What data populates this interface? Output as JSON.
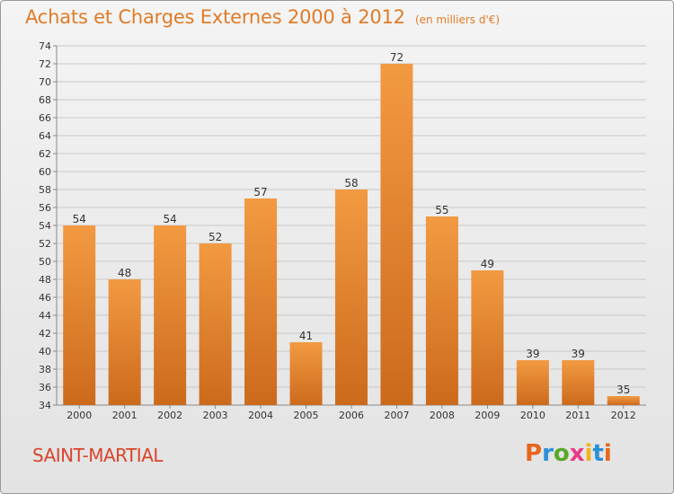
{
  "header": {
    "title": "Achats et Charges Externes 2000 à 2012",
    "unit": "(en milliers d'€)"
  },
  "footer": {
    "commune": "SAINT-MARTIAL",
    "logo_text": "Proxiti",
    "logo_colors": [
      "#e8651c",
      "#2a8fd6",
      "#5aa82a",
      "#e83a8a",
      "#f2b21b",
      "#2a8fd6",
      "#e8651c"
    ]
  },
  "chart_data": {
    "type": "bar",
    "categories": [
      "2000",
      "2001",
      "2002",
      "2003",
      "2004",
      "2005",
      "2006",
      "2007",
      "2008",
      "2009",
      "2010",
      "2011",
      "2012"
    ],
    "values": [
      54,
      48,
      54,
      52,
      57,
      41,
      58,
      72,
      55,
      49,
      39,
      39,
      35
    ],
    "ylim": [
      34,
      74
    ],
    "yticks": [
      34,
      36,
      38,
      40,
      42,
      44,
      46,
      48,
      50,
      52,
      54,
      56,
      58,
      60,
      62,
      64,
      66,
      68,
      70,
      72,
      74
    ],
    "grid": true,
    "bar_color": "#f29a42",
    "bar_color_dark": "#cc6a1c"
  }
}
